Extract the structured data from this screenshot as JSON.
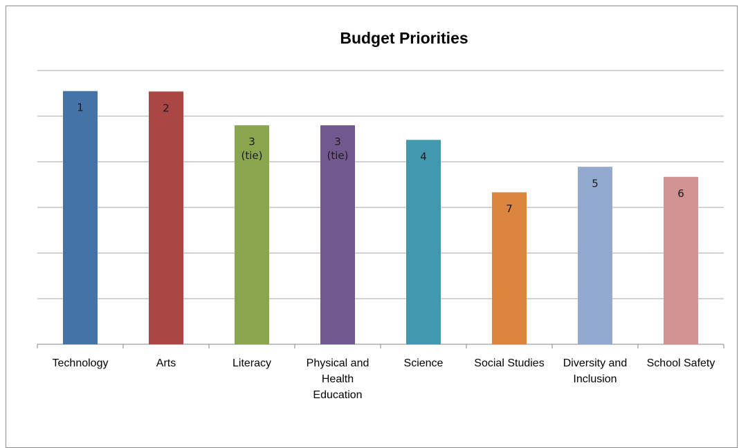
{
  "chart_data": {
    "type": "bar",
    "title": "Budget Priorities",
    "xlabel": "",
    "ylabel": "",
    "ylim": [
      0,
      6
    ],
    "grid": true,
    "legend": "none",
    "categories": [
      "Technology",
      "Arts",
      "Literacy",
      "Physical and Health Education",
      "Science",
      "Social Studies",
      "Diversity and Inclusion",
      "School Safety"
    ],
    "category_lines": [
      [
        "Technology"
      ],
      [
        "Arts"
      ],
      [
        "Literacy"
      ],
      [
        "Physical and",
        "Health",
        "Education"
      ],
      [
        "Science"
      ],
      [
        "Social Studies"
      ],
      [
        "Diversity and",
        "Inclusion"
      ],
      [
        "School Safety"
      ]
    ],
    "values": [
      5.55,
      5.54,
      4.8,
      4.8,
      4.48,
      3.33,
      3.89,
      3.67
    ],
    "data_labels": [
      [
        "1"
      ],
      [
        "2"
      ],
      [
        "3",
        "(tie)"
      ],
      [
        "3",
        "(tie)"
      ],
      [
        "4"
      ],
      [
        "7"
      ],
      [
        "5"
      ],
      [
        "6"
      ]
    ],
    "colors": [
      "#4572a7",
      "#aa4643",
      "#89a54e",
      "#71588f",
      "#4198af",
      "#db843d",
      "#93a9cf",
      "#d19392"
    ]
  }
}
